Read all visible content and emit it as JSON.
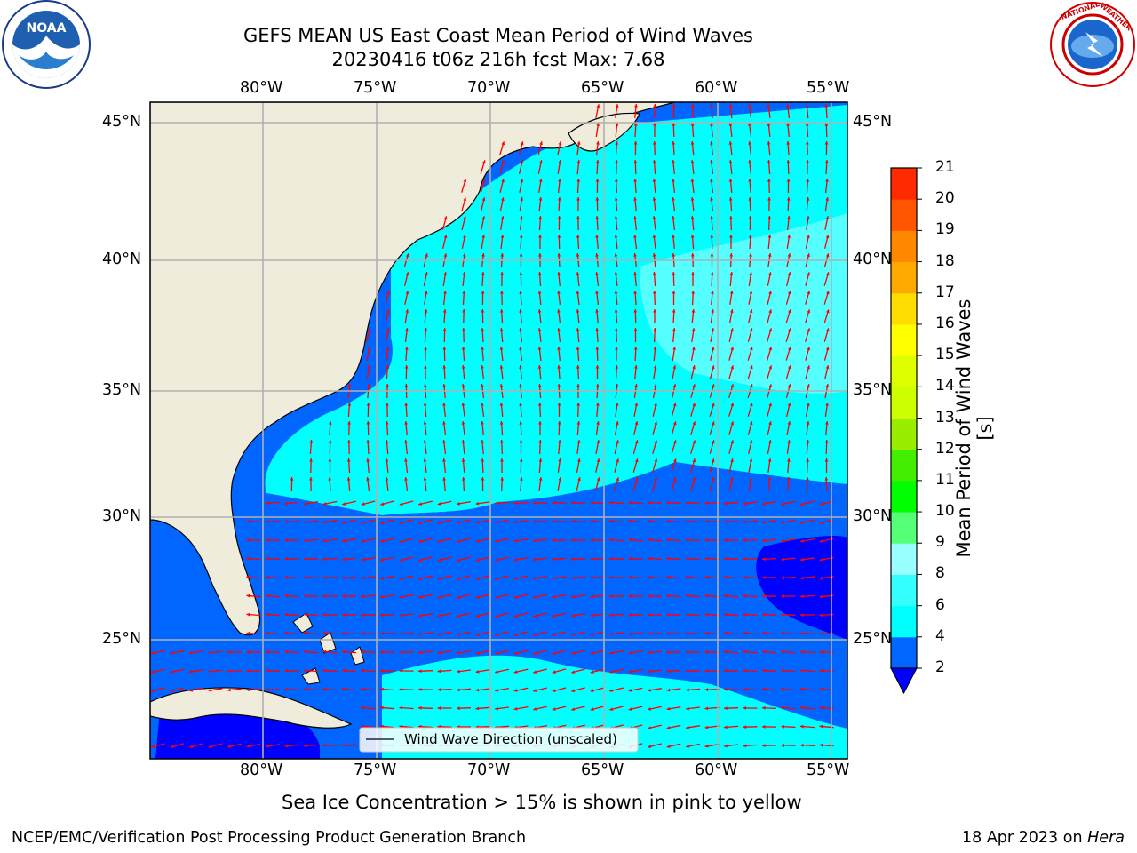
{
  "title": "GEFS MEAN US East Coast Mean Period of Wind Waves",
  "subtitle": "20230416 t06z 216h fcst   Max: 7.68",
  "map": {
    "lon_labels_top": [
      "80°W",
      "75°W",
      "70°W",
      "65°W",
      "60°W",
      "55°W"
    ],
    "lon_labels_bottom": [
      "80°W",
      "75°W",
      "70°W",
      "65°W",
      "60°W",
      "55°W"
    ],
    "lat_labels_left": [
      "45°N",
      "40°N",
      "35°N",
      "30°N",
      "25°N"
    ],
    "lat_labels_right": [
      "45°N",
      "40°N",
      "35°N",
      "30°N",
      "25°N"
    ],
    "lon_range": [
      -85,
      -54.4
    ],
    "lat_range": [
      20.5,
      45.8
    ],
    "legend_label": "Wind Wave Direction (unscaled)",
    "arrow_color": "#ff0000",
    "land_color": "#efecdb",
    "gridlines": true
  },
  "colorbar": {
    "label": "Mean Period of Wind Waves [s]",
    "ticks": [
      "2",
      "4",
      "6",
      "8",
      "9",
      "10",
      "11",
      "12",
      "13",
      "14",
      "15",
      "16",
      "17",
      "18",
      "19",
      "20",
      "21"
    ],
    "colors": [
      "#0066ff",
      "#00ffff",
      "#33ffff",
      "#99ffff",
      "#55ff77",
      "#00ff00",
      "#44ee00",
      "#99ee00",
      "#ccff00",
      "#ddff00",
      "#ffff00",
      "#ffdd00",
      "#ffaa00",
      "#ff8800",
      "#ff5500",
      "#ff2a00",
      "#ff0000"
    ],
    "under_color": "#0000ff"
  },
  "caption": "Sea Ice Concentration > 15% is shown in pink to yellow",
  "footer_left": "NCEP/EMC/Verification Post Processing Product Generation Branch",
  "footer_right_date": "18 Apr 2023 on",
  "footer_right_machine": "Hera",
  "logos": {
    "noaa": "NOAA",
    "nws": "NATIONAL WEATHER SERVICE"
  }
}
